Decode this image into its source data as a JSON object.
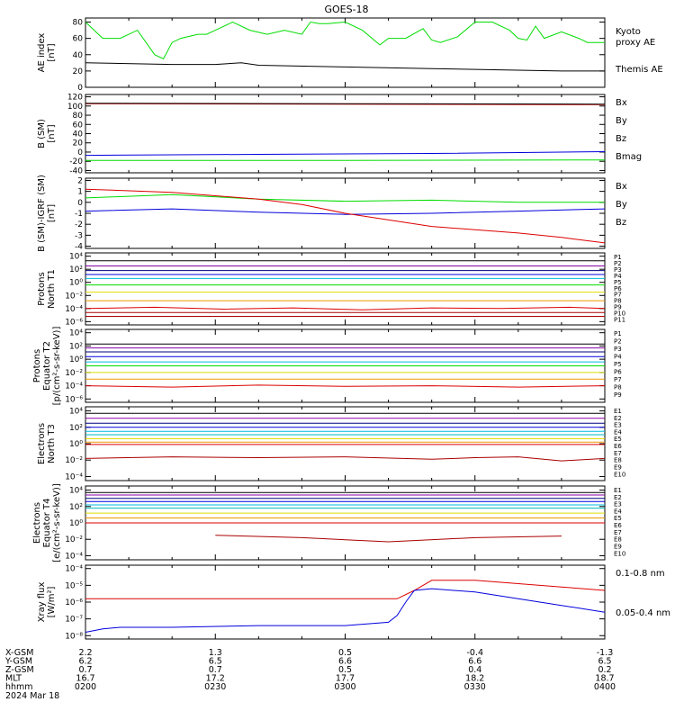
{
  "title": "GOES-18",
  "colors": {
    "black": "#000000",
    "red": "#dd0000",
    "green": "#00dd00",
    "blue": "#0000dd",
    "darkred": "#aa0000",
    "navy": "#000080",
    "cyan": "#00bbdd",
    "teal": "#00bbbb",
    "yellow": "#dddd00",
    "orange": "#ee9900",
    "purple": "#8800aa"
  },
  "chart_data": [
    {
      "id": "ae",
      "type": "line",
      "ylabel": [
        "AE index",
        "[nT]"
      ],
      "yticks": [
        "0",
        "20",
        "40",
        "60",
        "80"
      ],
      "ylim": [
        0,
        85
      ],
      "series": [
        {
          "name": "Kyoto proxy AE",
          "color": "green",
          "x": [
            0,
            2,
            4,
            6,
            8,
            9,
            10,
            11,
            13,
            14,
            15,
            17,
            19,
            21,
            23,
            25,
            26,
            27,
            28,
            30,
            32,
            34,
            35,
            37,
            39,
            40,
            41,
            43,
            45,
            47,
            49,
            50,
            51,
            52,
            53,
            55,
            57,
            58,
            60
          ],
          "y": [
            80,
            60,
            60,
            70,
            40,
            35,
            55,
            60,
            65,
            65,
            70,
            80,
            70,
            65,
            70,
            65,
            80,
            78,
            78,
            80,
            70,
            52,
            60,
            60,
            72,
            58,
            55,
            62,
            80,
            80,
            70,
            60,
            58,
            75,
            60,
            68,
            60,
            55,
            55
          ]
        },
        {
          "name": "Themis AE",
          "color": "black",
          "x": [
            0,
            10,
            15,
            18,
            20,
            30,
            40,
            50,
            55,
            60
          ],
          "y": [
            30,
            28,
            28,
            30,
            27,
            25,
            23,
            21,
            20,
            20
          ]
        }
      ]
    },
    {
      "id": "bsm",
      "type": "line",
      "ylabel": [
        "B (SM)",
        "[nT]"
      ],
      "yticks": [
        "-40",
        "-20",
        "0",
        "20",
        "40",
        "60",
        "80",
        "100",
        "120"
      ],
      "ylim": [
        -45,
        125
      ],
      "series": [
        {
          "name": "Bx",
          "color": "blue",
          "x": [
            0,
            20,
            40,
            60
          ],
          "y": [
            -7,
            -5,
            -3,
            1
          ]
        },
        {
          "name": "By",
          "color": "green",
          "x": [
            0,
            30,
            60
          ],
          "y": [
            -18,
            -18,
            -17
          ]
        },
        {
          "name": "Bz",
          "color": "red",
          "x": [
            0,
            30,
            60
          ],
          "y": [
            105,
            104,
            103
          ]
        },
        {
          "name": "Bmag",
          "color": "black",
          "x": [
            0,
            30,
            60
          ],
          "y": [
            106,
            105,
            104
          ]
        }
      ]
    },
    {
      "id": "bdiff",
      "type": "line",
      "ylabel": [
        "B (SM)-IGRF (SM)",
        "[nT]"
      ],
      "yticks": [
        "-4",
        "-3",
        "-2",
        "-1",
        "0",
        "1",
        "2"
      ],
      "ylim": [
        -4.2,
        2.2
      ],
      "series": [
        {
          "name": "Bx",
          "color": "blue",
          "x": [
            0,
            10,
            20,
            30,
            40,
            50,
            60
          ],
          "y": [
            -0.8,
            -0.6,
            -0.9,
            -1.1,
            -1.0,
            -0.8,
            -0.6
          ]
        },
        {
          "name": "By",
          "color": "green",
          "x": [
            0,
            10,
            20,
            30,
            40,
            50,
            60
          ],
          "y": [
            0.4,
            0.7,
            0.3,
            0.1,
            0.2,
            0.0,
            0.0
          ]
        },
        {
          "name": "Bz",
          "color": "red",
          "x": [
            0,
            10,
            20,
            25,
            30,
            40,
            50,
            55,
            60
          ],
          "y": [
            1.2,
            0.9,
            0.3,
            -0.2,
            -1.0,
            -2.2,
            -2.8,
            -3.2,
            -3.7
          ]
        }
      ]
    },
    {
      "id": "p_north",
      "type": "line",
      "log": true,
      "ylabel": [
        "Protons",
        "North T1"
      ],
      "yticks": [
        "10⁻⁶",
        "10⁻⁴",
        "10⁻²",
        "10⁰",
        "10²",
        "10⁴"
      ],
      "ylim": [
        -6.5,
        4.5
      ],
      "series": [
        {
          "name": "P1",
          "color": "black",
          "x": [
            0,
            60
          ],
          "y": [
            3.3,
            3.3
          ]
        },
        {
          "name": "P2",
          "color": "purple",
          "x": [
            0,
            60
          ],
          "y": [
            2.5,
            2.5
          ]
        },
        {
          "name": "P3",
          "color": "navy",
          "x": [
            0,
            60
          ],
          "y": [
            1.8,
            1.8
          ]
        },
        {
          "name": "P4",
          "color": "blue",
          "x": [
            0,
            60
          ],
          "y": [
            1.2,
            1.2
          ]
        },
        {
          "name": "P5",
          "color": "cyan",
          "x": [
            0,
            60
          ],
          "y": [
            0.6,
            0.6
          ]
        },
        {
          "name": "P6",
          "color": "green",
          "x": [
            0,
            60
          ],
          "y": [
            -0.4,
            -0.4
          ]
        },
        {
          "name": "P7",
          "color": "yellow",
          "x": [
            0,
            60
          ],
          "y": [
            -1.5,
            -1.5
          ]
        },
        {
          "name": "P8",
          "color": "orange",
          "x": [
            0,
            60
          ],
          "y": [
            -2.8,
            -2.8
          ]
        },
        {
          "name": "P9",
          "color": "red",
          "x": [
            0,
            8,
            16,
            24,
            32,
            40,
            48,
            56,
            60
          ],
          "y": [
            -4.0,
            -3.8,
            -4.1,
            -3.9,
            -4.2,
            -3.9,
            -4.0,
            -3.8,
            -4.0
          ]
        },
        {
          "name": "P10",
          "color": "darkred",
          "x": [
            0,
            60
          ],
          "y": [
            -4.6,
            -4.6
          ]
        },
        {
          "name": "P11",
          "color": "darkred",
          "x": [
            0,
            60
          ],
          "y": [
            -5.2,
            -5.2
          ]
        }
      ]
    },
    {
      "id": "p_equator",
      "type": "line",
      "log": true,
      "ylabel": [
        "Protons",
        "Equator T2",
        "[p/(cm²-s-sr-keV)]"
      ],
      "yticks": [
        "10⁻⁶",
        "10⁻⁴",
        "10⁻²",
        "10⁰",
        "10²",
        "10⁴"
      ],
      "ylim": [
        -6.5,
        4.5
      ],
      "series": [
        {
          "name": "P1",
          "color": "black",
          "x": [
            0,
            60
          ],
          "y": [
            2.3,
            2.3
          ]
        },
        {
          "name": "P2",
          "color": "purple",
          "x": [
            0,
            60
          ],
          "y": [
            1.7,
            1.7
          ]
        },
        {
          "name": "P3",
          "color": "navy",
          "x": [
            0,
            60
          ],
          "y": [
            1.1,
            1.1
          ]
        },
        {
          "name": "P4",
          "color": "blue",
          "x": [
            0,
            60
          ],
          "y": [
            0.4,
            0.4
          ]
        },
        {
          "name": "P5",
          "color": "cyan",
          "x": [
            0,
            60
          ],
          "y": [
            -0.4,
            -0.4
          ]
        },
        {
          "name": "P6",
          "color": "green",
          "x": [
            0,
            60
          ],
          "y": [
            -1.0,
            -1.0
          ]
        },
        {
          "name": "P7",
          "color": "yellow",
          "x": [
            0,
            60
          ],
          "y": [
            -2.0,
            -2.0
          ]
        },
        {
          "name": "P8",
          "color": "orange",
          "x": [
            0,
            60
          ],
          "y": [
            -3.0,
            -3.0
          ]
        },
        {
          "name": "P9",
          "color": "red",
          "x": [
            0,
            10,
            20,
            30,
            40,
            50,
            60
          ],
          "y": [
            -4.0,
            -4.2,
            -3.9,
            -4.1,
            -4.0,
            -4.2,
            -4.0
          ]
        }
      ]
    },
    {
      "id": "e_north",
      "type": "line",
      "log": true,
      "ylabel": [
        "Electrons",
        "North T3"
      ],
      "yticks": [
        "10⁻⁴",
        "10⁻²",
        "10⁰",
        "10²",
        "10⁴"
      ],
      "ylim": [
        -4.5,
        4.5
      ],
      "series": [
        {
          "name": "E1",
          "color": "black",
          "x": [
            0,
            60
          ],
          "y": [
            3.7,
            3.7
          ]
        },
        {
          "name": "E2",
          "color": "purple",
          "x": [
            0,
            60
          ],
          "y": [
            3.1,
            3.1
          ]
        },
        {
          "name": "E3",
          "color": "navy",
          "x": [
            0,
            60
          ],
          "y": [
            2.5,
            2.5
          ]
        },
        {
          "name": "E4",
          "color": "blue",
          "x": [
            0,
            60
          ],
          "y": [
            2.0,
            2.0
          ]
        },
        {
          "name": "E5",
          "color": "cyan",
          "x": [
            0,
            60
          ],
          "y": [
            1.5,
            1.5
          ]
        },
        {
          "name": "E6",
          "color": "teal",
          "x": [
            0,
            60
          ],
          "y": [
            1.1,
            1.1
          ]
        },
        {
          "name": "E7",
          "color": "yellow",
          "x": [
            0,
            60
          ],
          "y": [
            0.6,
            0.6
          ]
        },
        {
          "name": "E8",
          "color": "orange",
          "x": [
            0,
            60
          ],
          "y": [
            0.2,
            0.2
          ]
        },
        {
          "name": "E9",
          "color": "red",
          "x": [
            0,
            60
          ],
          "y": [
            -0.1,
            -0.1
          ]
        },
        {
          "name": "E10",
          "color": "darkred",
          "x": [
            0,
            10,
            20,
            30,
            40,
            45,
            50,
            55,
            60
          ],
          "y": [
            -1.8,
            -1.6,
            -1.7,
            -1.6,
            -1.9,
            -1.7,
            -1.6,
            -2.1,
            -1.8
          ]
        }
      ]
    },
    {
      "id": "e_equator",
      "type": "line",
      "log": true,
      "ylabel": [
        "Electrons",
        "Equator T4",
        "[e/(cm²-s-sr-keV)]"
      ],
      "yticks": [
        "10⁻⁴",
        "10⁻²",
        "10⁰",
        "10²",
        "10⁴"
      ],
      "ylim": [
        -4.5,
        4.5
      ],
      "series": [
        {
          "name": "E1",
          "color": "black",
          "x": [
            0,
            60
          ],
          "y": [
            3.7,
            3.7
          ]
        },
        {
          "name": "E2",
          "color": "purple",
          "x": [
            0,
            60
          ],
          "y": [
            3.4,
            3.4
          ]
        },
        {
          "name": "E3",
          "color": "navy",
          "x": [
            0,
            60
          ],
          "y": [
            3.0,
            3.0
          ]
        },
        {
          "name": "E4",
          "color": "blue",
          "x": [
            0,
            60
          ],
          "y": [
            2.6,
            2.6
          ]
        },
        {
          "name": "E5",
          "color": "cyan",
          "x": [
            0,
            60
          ],
          "y": [
            2.2,
            2.2
          ]
        },
        {
          "name": "E6",
          "color": "teal",
          "x": [
            0,
            60
          ],
          "y": [
            1.8,
            1.8
          ]
        },
        {
          "name": "E7",
          "color": "yellow",
          "x": [
            0,
            60
          ],
          "y": [
            1.2,
            1.2
          ]
        },
        {
          "name": "E8",
          "color": "orange",
          "x": [
            0,
            60
          ],
          "y": [
            0.6,
            0.6
          ]
        },
        {
          "name": "E9",
          "color": "red",
          "x": [
            0,
            60
          ],
          "y": [
            0.0,
            0.0
          ]
        },
        {
          "name": "E10",
          "color": "darkred",
          "x": [
            15,
            25,
            35,
            45,
            55
          ],
          "y": [
            -1.5,
            -1.8,
            -2.3,
            -1.8,
            -1.6
          ]
        }
      ]
    },
    {
      "id": "xray",
      "type": "line",
      "log": true,
      "ylabel": [
        "Xray flux",
        "[W/m²]"
      ],
      "yticks": [
        "10⁻⁸",
        "10⁻⁷",
        "10⁻⁶",
        "10⁻⁵",
        "10⁻⁴"
      ],
      "ylim": [
        -8.2,
        -3.8
      ],
      "series": [
        {
          "name": "0.1-0.8 nm",
          "color": "red",
          "x": [
            0,
            10,
            20,
            30,
            36,
            38,
            40,
            45,
            50,
            55,
            60
          ],
          "y": [
            -5.8,
            -5.8,
            -5.8,
            -5.8,
            -5.8,
            -5.3,
            -4.7,
            -4.7,
            -4.9,
            -5.1,
            -5.3
          ]
        },
        {
          "name": "0.05-0.4 nm",
          "color": "blue",
          "x": [
            0,
            2,
            4,
            10,
            20,
            30,
            35,
            36,
            37,
            38,
            40,
            45,
            50,
            55,
            60
          ],
          "y": [
            -7.8,
            -7.6,
            -7.5,
            -7.5,
            -7.4,
            -7.4,
            -7.2,
            -6.8,
            -6.0,
            -5.3,
            -5.2,
            -5.4,
            -5.8,
            -6.2,
            -6.6
          ]
        }
      ]
    }
  ],
  "axis_rows": [
    {
      "label": "X-GSM",
      "values": [
        "2.2",
        "1.3",
        "0.5",
        "-0.4",
        "-1.3"
      ]
    },
    {
      "label": "Y-GSM",
      "values": [
        "6.2",
        "6.5",
        "6.6",
        "6.6",
        "6.5"
      ]
    },
    {
      "label": "Z-GSM",
      "values": [
        "0.7",
        "0.7",
        "0.5",
        "0.4",
        "0.2"
      ]
    },
    {
      "label": "MLT",
      "values": [
        "16.7",
        "17.2",
        "17.7",
        "18.2",
        "18.7"
      ]
    },
    {
      "label": "hhmm",
      "values": [
        "0200",
        "0230",
        "0300",
        "0330",
        "0400"
      ]
    }
  ],
  "date_label": "2024 Mar 18",
  "legends": {
    "ae": [
      {
        "text": "Kyoto",
        "color": "green"
      },
      {
        "text": "proxy AE",
        "color": "green"
      },
      {
        "text": "Themis AE",
        "color": "black"
      }
    ],
    "bsm": [
      {
        "text": "Bx",
        "color": "blue"
      },
      {
        "text": "By",
        "color": "green"
      },
      {
        "text": "Bz",
        "color": "red"
      },
      {
        "text": "Bmag",
        "color": "black"
      }
    ],
    "bdiff": [
      {
        "text": "Bx",
        "color": "blue"
      },
      {
        "text": "By",
        "color": "green"
      },
      {
        "text": "Bz",
        "color": "red"
      }
    ],
    "xray": [
      {
        "text": "0.1-0.8 nm",
        "color": "red"
      },
      {
        "text": "0.05-0.4 nm",
        "color": "blue"
      }
    ]
  }
}
